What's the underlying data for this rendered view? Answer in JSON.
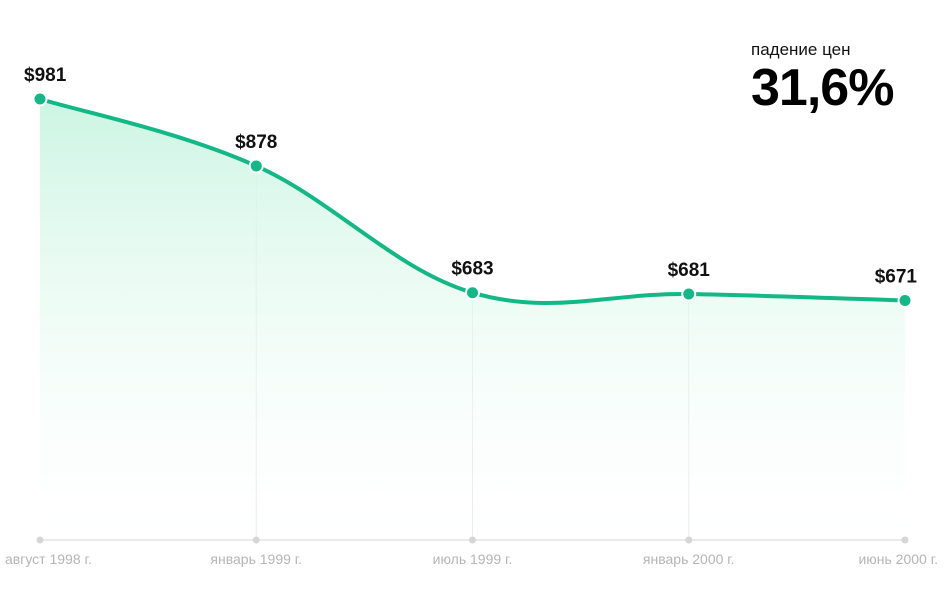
{
  "stat": {
    "label": "падение цен",
    "value": "31,6%"
  },
  "colors": {
    "line": "#12b886",
    "point": "#12b886",
    "area_top": "#ccf5e3",
    "gridline": "#e6e6e6",
    "axis": "#e3e3e3",
    "tick_label": "#b5b5b5"
  },
  "chart_data": {
    "type": "area",
    "title": "",
    "xlabel": "",
    "ylabel": "",
    "categories": [
      "август 1998 г.",
      "январь 1999 г.",
      "июль 1999 г.",
      "январь 2000 г.",
      "июнь 2000 г."
    ],
    "series": [
      {
        "values": [
          981,
          878,
          683,
          681,
          671
        ],
        "labels": [
          "$981",
          "$878",
          "$683",
          "$681",
          "$671"
        ]
      }
    ],
    "grid": "vertical"
  }
}
